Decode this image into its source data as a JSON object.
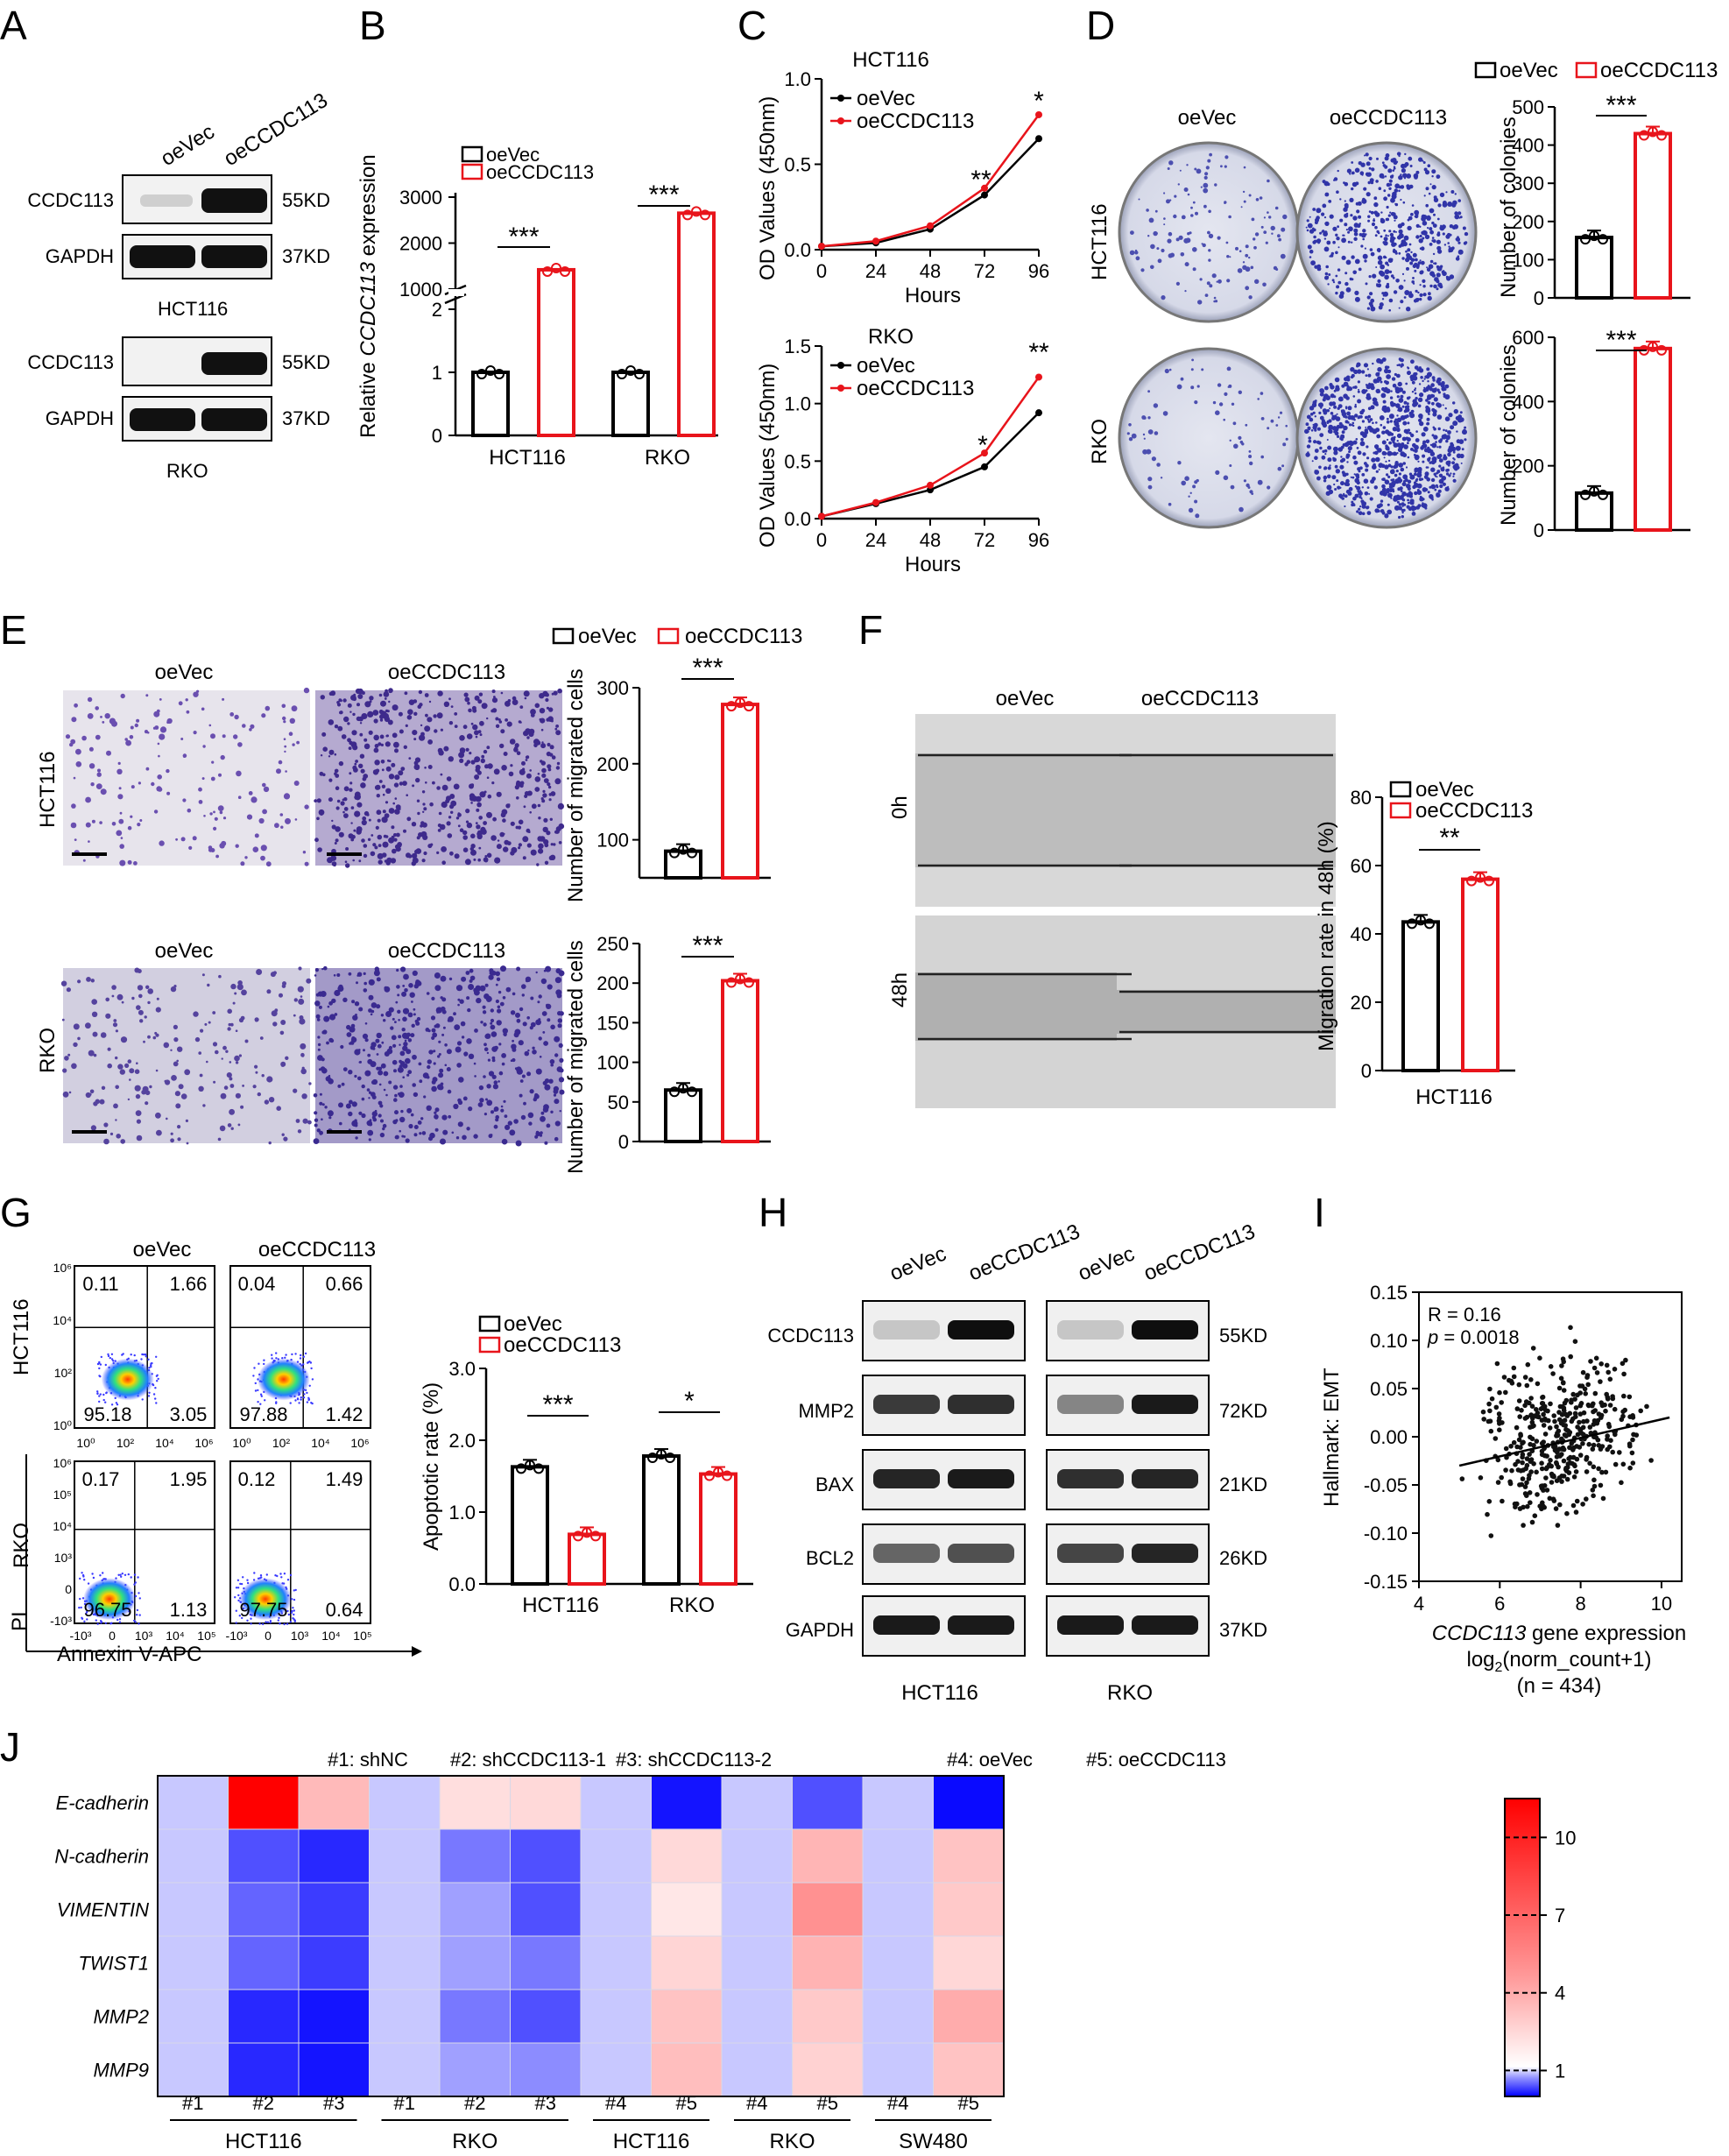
{
  "panels": {
    "A": "A",
    "B": "B",
    "C": "C",
    "D": "D",
    "E": "E",
    "F": "F",
    "G": "G",
    "H": "H",
    "I": "I",
    "J": "J"
  },
  "common": {
    "oeVec": "oeVec",
    "oeCCDC113": "oeCCDC113",
    "HCT116": "HCT116",
    "RKO": "RKO",
    "stars3": "***",
    "stars2": "**",
    "stars1": "*",
    "hours": "Hours"
  },
  "blot_labels": {
    "CCDC113": "CCDC113",
    "GAPDH": "GAPDH",
    "MMP2": "MMP2",
    "BAX": "BAX",
    "BCL2": "BCL2",
    "kd55": "55KD",
    "kd37": "37KD",
    "kd72": "72KD",
    "kd21": "21KD",
    "kd26": "26KD",
    "lane_oeVec": "oeVec",
    "lane_oeCCDC113": "oeCCDC113",
    "lane_oeCCDC113_italic": "oeCCDC113"
  },
  "panel_b": {
    "ylabel_prefix": "Relative ",
    "ylabel_gene": "CCDC113",
    "ylabel_suffix": " expression",
    "ticks_upper": [
      "1000",
      "2000",
      "3000"
    ],
    "ticks_lower": [
      "0",
      "1",
      "2"
    ]
  },
  "panel_c": {
    "ylabel": "OD  Values (450nm)",
    "x_ticks": [
      "0",
      "24",
      "48",
      "72",
      "96"
    ],
    "y_ticks_top": [
      "0.0",
      "0.5",
      "1.0"
    ],
    "y_ticks_bot": [
      "0.0",
      "0.5",
      "1.0",
      "1.5"
    ]
  },
  "panel_d": {
    "ylabel": "Number of colonies",
    "ticks_top": [
      "0",
      "100",
      "200",
      "300",
      "400",
      "500"
    ],
    "ticks_bot": [
      "0",
      "200",
      "400",
      "600"
    ]
  },
  "panel_e": {
    "ylabel": "Number of migrated cells",
    "ticks_top": [
      "100",
      "200",
      "300"
    ],
    "ticks_bot": [
      "0",
      "50",
      "100",
      "150",
      "200",
      "250"
    ]
  },
  "panel_f": {
    "ylabel": "Migration rate in 48h (%)",
    "row0": "0h",
    "row48": "48h",
    "ticks": [
      "0",
      "20",
      "40",
      "60",
      "80"
    ]
  },
  "panel_g": {
    "ylabel": "Apoptotic rate (%)",
    "ticks": [
      "0.0",
      "1.0",
      "2.0",
      "3.0"
    ],
    "pi": "PI",
    "annexin": "Annexin V-APC",
    "quadrants": [
      [
        "0.11",
        "1.66",
        "95.18",
        "3.05"
      ],
      [
        "0.04",
        "0.66",
        "97.88",
        "1.42"
      ],
      [
        "0.17",
        "1.95",
        "96.75",
        "1.13"
      ],
      [
        "0.12",
        "1.49",
        "97.75",
        "0.64"
      ]
    ],
    "yt_hct": [
      "10⁶",
      "10⁴",
      "10²",
      "10⁰"
    ],
    "xt_hct": [
      "10⁰",
      "10²",
      "10⁴",
      "10⁶"
    ],
    "yt_rko": [
      "10⁶",
      "10⁵",
      "10⁴",
      "10³",
      "0",
      "-10³"
    ],
    "xt_rko": [
      "-10³",
      "0",
      "10³",
      "10⁴",
      "10⁵"
    ]
  },
  "panel_i": {
    "r": "R = 0.16",
    "p_sym": "p",
    "p_val": " = 0.0018",
    "ylabel": "Hallmark: EMT",
    "xlabel_gene": "CCDC113",
    "xlabel_rest": " gene expression",
    "xlabel2": "log",
    "xlabel2_sub": "2",
    "xlabel2_rest": "(norm_count+1)",
    "n": "(n = 434)",
    "x_ticks": [
      "4",
      "6",
      "8",
      "10"
    ],
    "y_ticks": [
      "0.15",
      "0.10",
      "0.05",
      "0.00",
      "-0.05",
      "-0.10",
      "-0.15"
    ]
  },
  "panel_j": {
    "groups": [
      "#1: shNC",
      "#2: shCCDC113-1",
      "#3: shCCDC113-2",
      "#4: oeVec",
      "#5: oeCCDC113"
    ],
    "rows": [
      "E-cadherin",
      "N-cadherin",
      "VIMENTIN",
      "TWIST1",
      "MMP2",
      "MMP9"
    ],
    "cols": [
      "#1",
      "#2",
      "#3",
      "#1",
      "#2",
      "#3",
      "#4",
      "#5",
      "#4",
      "#5",
      "#4",
      "#5"
    ],
    "cell_lines": [
      "HCT116",
      "RKO",
      "HCT116",
      "RKO",
      "SW480"
    ],
    "scale_ticks": [
      "10",
      "7",
      "4",
      "1"
    ]
  },
  "chart_data": [
    {
      "panel": "B",
      "type": "bar",
      "categories": [
        "HCT116",
        "RKO"
      ],
      "series": [
        {
          "name": "oeVec",
          "values": [
            1.0,
            1.0
          ]
        },
        {
          "name": "oeCCDC113",
          "values": [
            1420,
            2650
          ]
        }
      ],
      "ylabel": "Relative CCDC113 expression"
    },
    {
      "panel": "C-HCT116",
      "type": "line",
      "title": "HCT116",
      "x": [
        0,
        24,
        48,
        72,
        96
      ],
      "series": [
        {
          "name": "oeVec",
          "values": [
            0.02,
            0.04,
            0.12,
            0.32,
            0.65
          ]
        },
        {
          "name": "oeCCDC113",
          "values": [
            0.02,
            0.05,
            0.14,
            0.36,
            0.79
          ]
        }
      ],
      "xlabel": "Hours",
      "ylabel": "OD  Values (450nm)",
      "ylim": [
        0,
        1.0
      ]
    },
    {
      "panel": "C-RKO",
      "type": "line",
      "title": "RKO",
      "x": [
        0,
        24,
        48,
        72,
        96
      ],
      "series": [
        {
          "name": "oeVec",
          "values": [
            0.02,
            0.13,
            0.25,
            0.45,
            0.92
          ]
        },
        {
          "name": "oeCCDC113",
          "values": [
            0.02,
            0.14,
            0.29,
            0.57,
            1.23
          ]
        }
      ],
      "xlabel": "Hours",
      "ylabel": "OD  Values (450nm)",
      "ylim": [
        0,
        1.5
      ]
    },
    {
      "panel": "D-HCT116",
      "type": "bar",
      "categories": [
        "oeVec",
        "oeCCDC113"
      ],
      "values": [
        158,
        430
      ],
      "ylabel": "Number of colonies",
      "ylim": [
        0,
        500
      ]
    },
    {
      "panel": "D-RKO",
      "type": "bar",
      "categories": [
        "oeVec",
        "oeCCDC113"
      ],
      "values": [
        115,
        565
      ],
      "ylabel": "Number of colonies",
      "ylim": [
        0,
        600
      ]
    },
    {
      "panel": "E-HCT116",
      "type": "bar",
      "categories": [
        "oeVec",
        "oeCCDC113"
      ],
      "values": [
        85,
        278
      ],
      "ylabel": "Number of migrated cells",
      "ylim": [
        50,
        300
      ]
    },
    {
      "panel": "E-RKO",
      "type": "bar",
      "categories": [
        "oeVec",
        "oeCCDC113"
      ],
      "values": [
        65,
        203
      ],
      "ylabel": "Number of migrated cells",
      "ylim": [
        0,
        250
      ]
    },
    {
      "panel": "F",
      "type": "bar",
      "categories": [
        "oeVec",
        "oeCCDC113"
      ],
      "values": [
        43.5,
        56
      ],
      "xlabel": "HCT116",
      "ylabel": "Migration rate in 48h (%)",
      "ylim": [
        0,
        80
      ]
    },
    {
      "panel": "G",
      "type": "bar",
      "categories": [
        "HCT116",
        "RKO"
      ],
      "series": [
        {
          "name": "oeVec",
          "values": [
            1.63,
            1.78
          ]
        },
        {
          "name": "oeCCDC113",
          "values": [
            0.69,
            1.53
          ]
        }
      ],
      "ylabel": "Apoptotic rate (%)",
      "ylim": [
        0,
        3.0
      ]
    },
    {
      "panel": "I",
      "type": "scatter",
      "xlabel": "CCDC113 gene expression log2(norm_count+1)",
      "ylabel": "Hallmark: EMT",
      "xlim": [
        4,
        10.5
      ],
      "ylim": [
        -0.15,
        0.15
      ],
      "trend": {
        "x": [
          5,
          10.2
        ],
        "y": [
          -0.03,
          0.02
        ]
      }
    },
    {
      "panel": "J",
      "type": "heatmap",
      "rows": [
        "E-cadherin",
        "N-cadherin",
        "VIMENTIN",
        "TWIST1",
        "MMP2",
        "MMP9"
      ],
      "cols": [
        "#1",
        "#2",
        "#3",
        "#1",
        "#2",
        "#3",
        "#4",
        "#5",
        "#4",
        "#5",
        "#4",
        "#5"
      ],
      "values": [
        [
          1,
          11.5,
          3.2,
          1,
          1.6,
          1.8,
          1,
          0.1,
          1,
          0.4,
          1,
          0.05
        ],
        [
          1,
          0.4,
          0.2,
          1,
          0.6,
          0.4,
          1,
          1.8,
          1,
          3.4,
          1,
          2.8
        ],
        [
          1,
          0.5,
          0.3,
          1,
          0.8,
          0.4,
          1,
          1.2,
          1,
          5.0,
          1,
          2.5
        ],
        [
          1,
          0.5,
          0.3,
          1,
          0.8,
          0.6,
          1,
          2.0,
          1,
          3.5,
          1,
          1.9
        ],
        [
          1,
          0.2,
          0.1,
          1,
          0.6,
          0.4,
          1,
          2.8,
          1,
          2.5,
          1,
          3.8
        ],
        [
          1,
          0.2,
          0.1,
          1,
          0.8,
          0.7,
          1,
          3.0,
          1,
          2.1,
          1,
          2.8
        ]
      ],
      "scale_ticks": [
        10,
        7,
        4,
        1
      ]
    }
  ]
}
